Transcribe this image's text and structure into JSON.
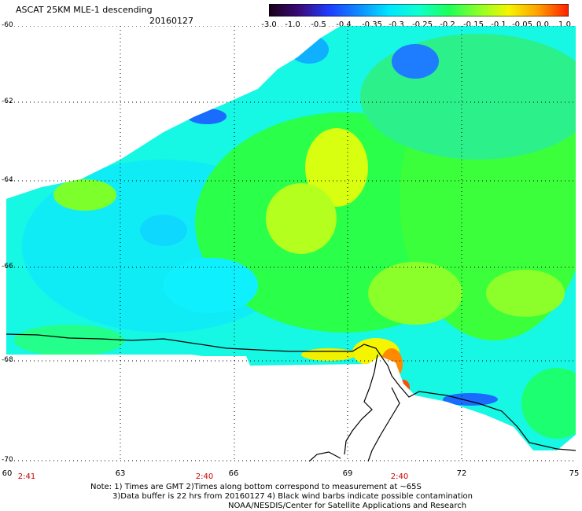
{
  "header": {
    "title": "ASCAT 25KM MLE-1 descending",
    "date": "20160127"
  },
  "colorbar": {
    "stops": [
      "#1a0018",
      "#3a0a78",
      "#1f3cff",
      "#0f8bff",
      "#00e5ff",
      "#10ffcf",
      "#1eff5a",
      "#8cff2a",
      "#f5f500",
      "#ff9d00",
      "#ff1e00"
    ],
    "tick_labels": [
      "-3.0",
      "-1.0",
      "-0.5",
      "-0.4",
      "-0.35",
      "-0.3",
      "-0.25",
      "-0.2",
      "-0.15",
      "-0.1",
      "-0.05",
      "0.0",
      "1.0"
    ]
  },
  "map": {
    "lat_labels": [
      "-60",
      "-62",
      "-64",
      "-66",
      "-68",
      "-70"
    ],
    "lon_labels": [
      "60",
      "63",
      "66",
      "69",
      "72",
      "75"
    ],
    "time_labels": [
      "2:41",
      "2:40",
      "2:40"
    ],
    "colors": {
      "background": "#ffffff",
      "coast": "#000000",
      "grid": "#000000",
      "time_label": "#cc0000"
    }
  },
  "notes": {
    "line1": "Note: 1) Times are GMT 2)Times along bottom correspond to measurement at ~65S",
    "line2": "3)Data buffer is 22 hrs from 20160127 4) Black wind barbs indicate possible contamination",
    "line3": "NOAA/NESDIS/Center for Satellite Applications and Research"
  }
}
